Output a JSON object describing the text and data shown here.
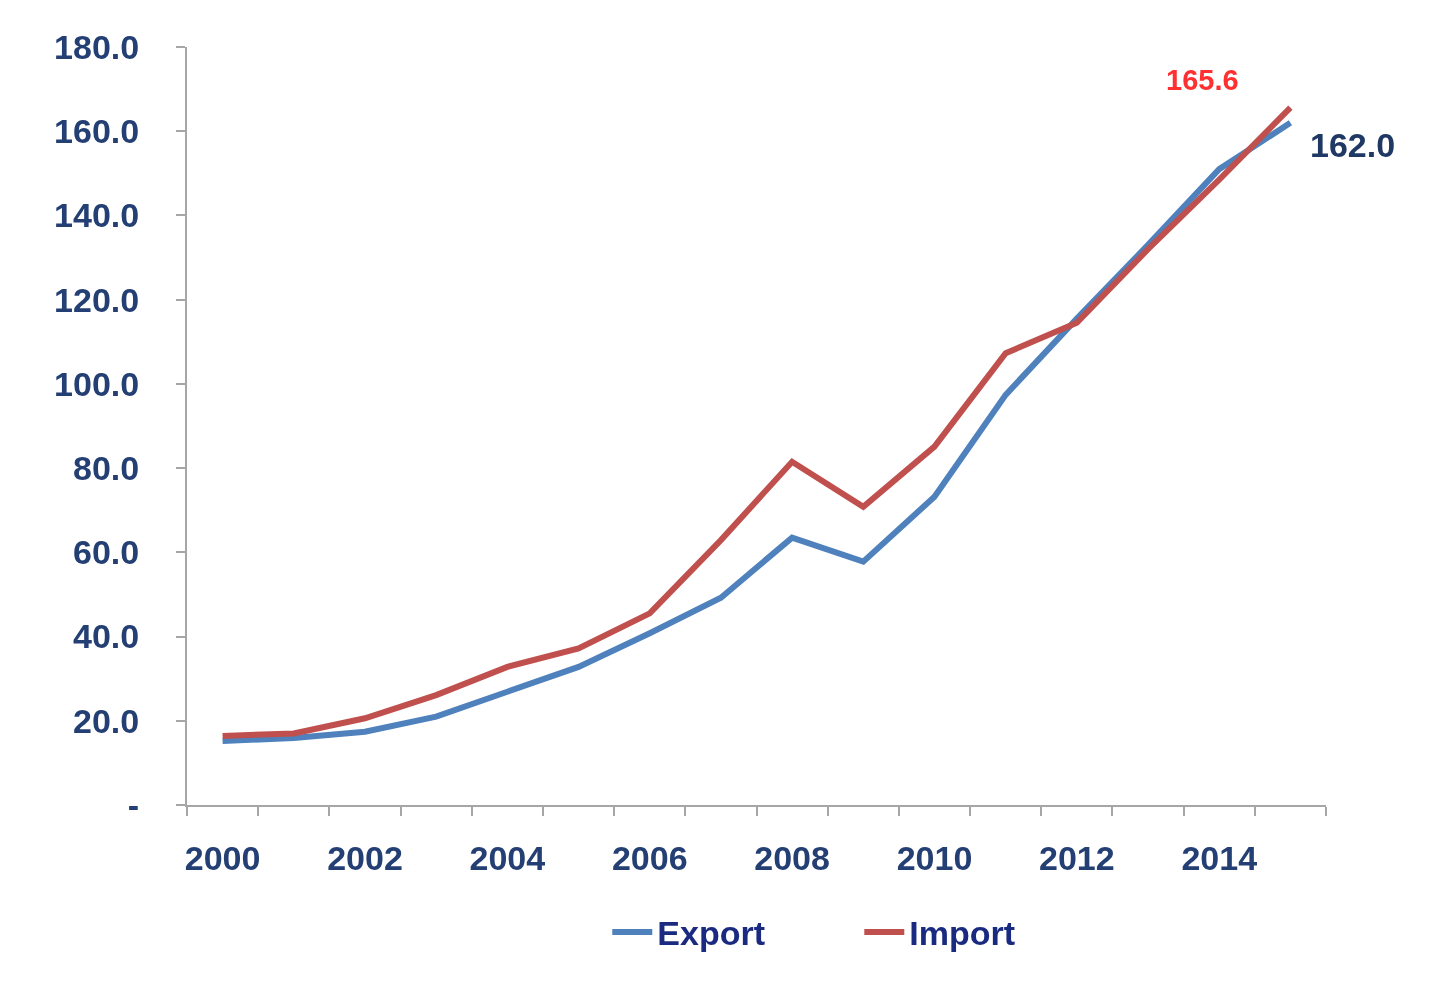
{
  "chart_data": {
    "type": "line",
    "categories": [
      "2000",
      null,
      "2002",
      null,
      "2004",
      null,
      "2006",
      null,
      "2008",
      null,
      "2010",
      null,
      "2012",
      null,
      "2014",
      null
    ],
    "series": [
      {
        "name": "Export",
        "color": "#4f81bd",
        "values": [
          15.2,
          15.9,
          17.4,
          21.0,
          26.9,
          32.8,
          40.8,
          49.2,
          63.5,
          57.8,
          73.2,
          97.4,
          115.5,
          133.0,
          151.0,
          162.0
        ],
        "value_labels": [
          null,
          null,
          null,
          null,
          null,
          null,
          null,
          null,
          null,
          null,
          null,
          null,
          null,
          null,
          null,
          "162.0"
        ]
      },
      {
        "name": "Import",
        "color": "#c0504d",
        "values": [
          16.4,
          17.0,
          20.6,
          26.1,
          32.8,
          37.2,
          45.5,
          62.9,
          81.5,
          70.8,
          85.1,
          107.3,
          114.5,
          132.0,
          148.5,
          165.6
        ],
        "value_labels": [
          null,
          null,
          null,
          null,
          null,
          null,
          null,
          null,
          null,
          null,
          null,
          null,
          null,
          null,
          null,
          "165.6"
        ]
      }
    ],
    "ylim": [
      0,
      180
    ],
    "yticks": [
      {
        "value": 0,
        "label": "-"
      },
      {
        "value": 20,
        "label": "20.0"
      },
      {
        "value": 40,
        "label": "40.0"
      },
      {
        "value": 60,
        "label": "60.0"
      },
      {
        "value": 80,
        "label": "80.0"
      },
      {
        "value": 100,
        "label": "100.0"
      },
      {
        "value": 120,
        "label": "120.0"
      },
      {
        "value": 140,
        "label": "140.0"
      },
      {
        "value": 160,
        "label": "160.0"
      },
      {
        "value": 180,
        "label": "180.0"
      }
    ],
    "grid": false,
    "legend": "bottom",
    "line_style": "solid"
  }
}
